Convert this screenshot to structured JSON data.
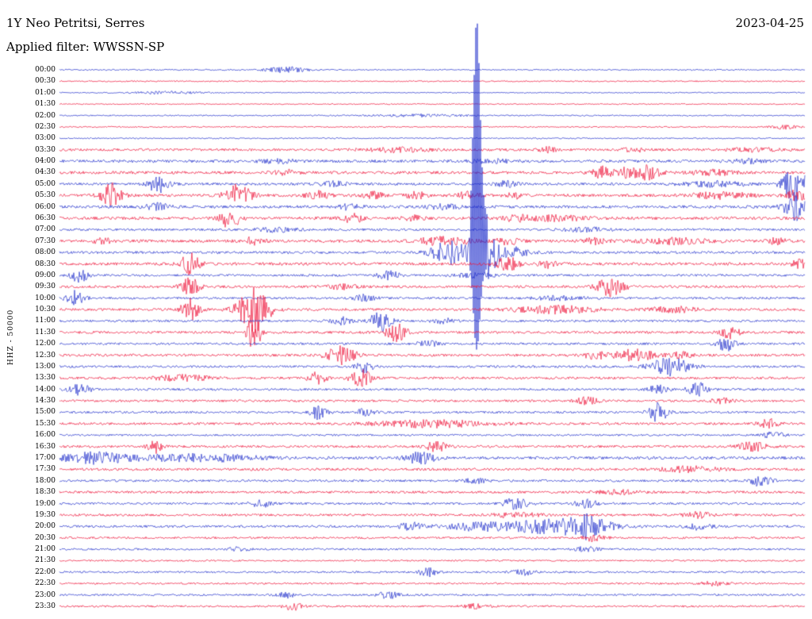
{
  "header": {
    "station": "1Y Neo Petritsi, Serres",
    "date": "2023-04-25",
    "filter_label": "Applied filter: WWSSN-SP"
  },
  "ylabel": "HHZ - 50000",
  "chart_data": {
    "type": "line",
    "subtype": "helicorder-seismogram",
    "title": "1Y Neo Petritsi, Serres",
    "date": "2023-04-25",
    "filter": "WWSSN-SP",
    "channel": "HHZ",
    "scale": 50000,
    "minutes_per_row": 30,
    "colors": {
      "even_row": "#2330cc",
      "odd_row": "#ee1439"
    },
    "legend": "rows alternate blue (even) / red (odd), one row = 30 minutes, events given as [x_px, amplitude_px, half_width_px]",
    "rows": [
      {
        "label": "00:00",
        "noise": 0.8,
        "events": [
          [
            360,
            3.5,
            18
          ]
        ]
      },
      {
        "label": "00:30",
        "noise": 0.8,
        "events": []
      },
      {
        "label": "01:00",
        "noise": 0.7,
        "events": [
          [
            210,
            1.5,
            30
          ]
        ]
      },
      {
        "label": "01:30",
        "noise": 0.7,
        "events": []
      },
      {
        "label": "02:00",
        "noise": 0.8,
        "events": [
          [
            530,
            1.5,
            40
          ]
        ]
      },
      {
        "label": "02:30",
        "noise": 0.8,
        "events": [
          [
            990,
            2.5,
            12
          ]
        ]
      },
      {
        "label": "03:00",
        "noise": 0.8,
        "events": []
      },
      {
        "label": "03:30",
        "noise": 1.6,
        "events": [
          [
            500,
            2.5,
            30
          ],
          [
            690,
            3,
            8
          ],
          [
            800,
            2.5,
            10
          ],
          [
            950,
            2,
            20
          ]
        ]
      },
      {
        "label": "04:00",
        "noise": 1.8,
        "events": [
          [
            350,
            2.5,
            15
          ],
          [
            620,
            2,
            20
          ],
          [
            940,
            2.5,
            15
          ]
        ]
      },
      {
        "label": "04:30",
        "noise": 1.8,
        "events": [
          [
            360,
            3,
            10
          ],
          [
            760,
            7,
            10
          ],
          [
            792,
            7,
            8
          ],
          [
            818,
            9,
            10
          ],
          [
            900,
            3,
            20
          ]
        ]
      },
      {
        "label": "05:00",
        "noise": 1.6,
        "events": [
          [
            200,
            11,
            9
          ],
          [
            420,
            3,
            12
          ],
          [
            640,
            3.5,
            10
          ],
          [
            900,
            3,
            30
          ],
          [
            1002,
            22,
            10
          ]
        ]
      },
      {
        "label": "05:30",
        "noise": 1.8,
        "events": [
          [
            140,
            16,
            9
          ],
          [
            300,
            13,
            12
          ],
          [
            400,
            5,
            10
          ],
          [
            470,
            4,
            10
          ],
          [
            525,
            4.5,
            8
          ],
          [
            590,
            4,
            10
          ],
          [
            650,
            3.5,
            8
          ],
          [
            910,
            4,
            25
          ],
          [
            1005,
            6,
            10
          ]
        ]
      },
      {
        "label": "06:00",
        "noise": 1.8,
        "events": [
          [
            200,
            5,
            10
          ],
          [
            440,
            3.5,
            10
          ],
          [
            560,
            3,
            15
          ],
          [
            1002,
            18,
            9
          ]
        ]
      },
      {
        "label": "06:30",
        "noise": 1.8,
        "events": [
          [
            290,
            14,
            8
          ],
          [
            445,
            5.5,
            9
          ],
          [
            520,
            3.5,
            8
          ],
          [
            650,
            3.5,
            10
          ],
          [
            700,
            3,
            30
          ]
        ]
      },
      {
        "label": "07:00",
        "noise": 1.5,
        "events": [
          [
            350,
            2.5,
            20
          ],
          [
            740,
            2.5,
            20
          ]
        ]
      },
      {
        "label": "07:30",
        "noise": 1.8,
        "events": [
          [
            130,
            3.5,
            8
          ],
          [
            320,
            4.5,
            10
          ],
          [
            560,
            5,
            25
          ],
          [
            640,
            4.5,
            10
          ],
          [
            750,
            3.5,
            12
          ],
          [
            850,
            3.5,
            30
          ],
          [
            980,
            3.5,
            10
          ]
        ]
      },
      {
        "label": "08:00",
        "noise": 1.6,
        "events": [
          [
            565,
            15,
            15
          ],
          [
            601,
            210,
            4
          ],
          [
            608,
            38,
            10
          ],
          [
            633,
            9,
            20
          ]
        ]
      },
      {
        "label": "08:30",
        "noise": 1.8,
        "events": [
          [
            240,
            13,
            9
          ],
          [
            640,
            9,
            10
          ],
          [
            690,
            4.5,
            8
          ],
          [
            1008,
            5,
            8
          ]
        ]
      },
      {
        "label": "09:00",
        "noise": 1.4,
        "events": [
          [
            100,
            9,
            8
          ],
          [
            490,
            5.5,
            9
          ],
          [
            600,
            2.5,
            20
          ]
        ]
      },
      {
        "label": "09:30",
        "noise": 1.6,
        "events": [
          [
            240,
            11,
            8
          ],
          [
            430,
            3,
            15
          ],
          [
            770,
            11,
            12
          ]
        ]
      },
      {
        "label": "10:00",
        "noise": 1.4,
        "events": [
          [
            95,
            9,
            8
          ],
          [
            460,
            4,
            10
          ],
          [
            700,
            2.5,
            25
          ]
        ]
      },
      {
        "label": "10:30",
        "noise": 1.6,
        "events": [
          [
            240,
            13,
            8
          ],
          [
            320,
            28,
            14
          ],
          [
            700,
            4.5,
            35
          ],
          [
            850,
            3.5,
            20
          ]
        ]
      },
      {
        "label": "11:00",
        "noise": 1.4,
        "events": [
          [
            430,
            5,
            10
          ],
          [
            480,
            13,
            9
          ],
          [
            560,
            3,
            10
          ]
        ]
      },
      {
        "label": "11:30",
        "noise": 1.6,
        "events": [
          [
            320,
            24,
            6
          ],
          [
            500,
            11,
            9
          ],
          [
            920,
            7,
            9
          ]
        ]
      },
      {
        "label": "12:00",
        "noise": 1.4,
        "events": [
          [
            540,
            3.5,
            10
          ],
          [
            915,
            9,
            8
          ]
        ]
      },
      {
        "label": "12:30",
        "noise": 1.6,
        "events": [
          [
            430,
            11,
            13
          ],
          [
            750,
            4.5,
            10
          ],
          [
            800,
            7,
            18
          ],
          [
            860,
            4,
            10
          ]
        ]
      },
      {
        "label": "13:00",
        "noise": 1.4,
        "events": [
          [
            460,
            7,
            8
          ],
          [
            845,
            11,
            18
          ]
        ]
      },
      {
        "label": "13:30",
        "noise": 1.5,
        "events": [
          [
            230,
            3.5,
            25
          ],
          [
            400,
            7,
            8
          ],
          [
            455,
            11,
            9
          ]
        ]
      },
      {
        "label": "14:00",
        "noise": 1.4,
        "events": [
          [
            100,
            7,
            9
          ],
          [
            830,
            5.5,
            8
          ],
          [
            880,
            9,
            9
          ]
        ]
      },
      {
        "label": "14:30",
        "noise": 1.4,
        "events": [
          [
            740,
            5.5,
            10
          ],
          [
            910,
            3.5,
            10
          ]
        ]
      },
      {
        "label": "15:00",
        "noise": 1.4,
        "events": [
          [
            400,
            9,
            8
          ],
          [
            460,
            4.5,
            8
          ],
          [
            830,
            13,
            8
          ]
        ]
      },
      {
        "label": "15:30",
        "noise": 1.5,
        "events": [
          [
            545,
            4.5,
            50
          ],
          [
            970,
            5.5,
            9
          ]
        ]
      },
      {
        "label": "16:00",
        "noise": 1.2,
        "events": [
          [
            975,
            3.5,
            10
          ]
        ]
      },
      {
        "label": "16:30",
        "noise": 1.5,
        "events": [
          [
            195,
            9,
            6
          ],
          [
            550,
            7,
            9
          ],
          [
            950,
            5.5,
            15
          ]
        ]
      },
      {
        "label": "17:00",
        "noise": 1.8,
        "events": [
          [
            120,
            7,
            30
          ],
          [
            250,
            4.5,
            50
          ],
          [
            530,
            7,
            13
          ]
        ]
      },
      {
        "label": "17:30",
        "noise": 1.6,
        "events": [
          [
            870,
            3.5,
            25
          ]
        ]
      },
      {
        "label": "18:00",
        "noise": 1.4,
        "events": [
          [
            600,
            3,
            10
          ],
          [
            960,
            7,
            9
          ]
        ]
      },
      {
        "label": "18:30",
        "noise": 1.5,
        "events": [
          [
            780,
            2.5,
            20
          ]
        ]
      },
      {
        "label": "19:00",
        "noise": 1.4,
        "events": [
          [
            330,
            4.5,
            9
          ],
          [
            650,
            7,
            11
          ],
          [
            740,
            5,
            10
          ]
        ]
      },
      {
        "label": "19:30",
        "noise": 1.5,
        "events": [
          [
            650,
            3,
            20
          ],
          [
            880,
            3.5,
            12
          ]
        ]
      },
      {
        "label": "20:00",
        "noise": 1.5,
        "events": [
          [
            520,
            4.5,
            12
          ],
          [
            600,
            4.5,
            25
          ],
          [
            700,
            9,
            45
          ],
          [
            745,
            11,
            15
          ],
          [
            880,
            4.5,
            12
          ]
        ]
      },
      {
        "label": "20:30",
        "noise": 1.3,
        "events": [
          [
            750,
            4.5,
            10
          ]
        ]
      },
      {
        "label": "21:00",
        "noise": 1.2,
        "events": [
          [
            300,
            2.5,
            10
          ],
          [
            740,
            3.5,
            10
          ]
        ]
      },
      {
        "label": "21:30",
        "noise": 1.0,
        "events": []
      },
      {
        "label": "22:00",
        "noise": 1.2,
        "events": [
          [
            540,
            5.5,
            9
          ],
          [
            660,
            3.5,
            10
          ]
        ]
      },
      {
        "label": "22:30",
        "noise": 1.1,
        "events": [
          [
            900,
            2.5,
            12
          ]
        ]
      },
      {
        "label": "23:00",
        "noise": 1.2,
        "events": [
          [
            360,
            3.5,
            9
          ],
          [
            490,
            4.5,
            9
          ]
        ]
      },
      {
        "label": "23:30",
        "noise": 1.2,
        "events": [
          [
            370,
            4.5,
            9
          ],
          [
            600,
            3.5,
            10
          ]
        ]
      }
    ]
  }
}
